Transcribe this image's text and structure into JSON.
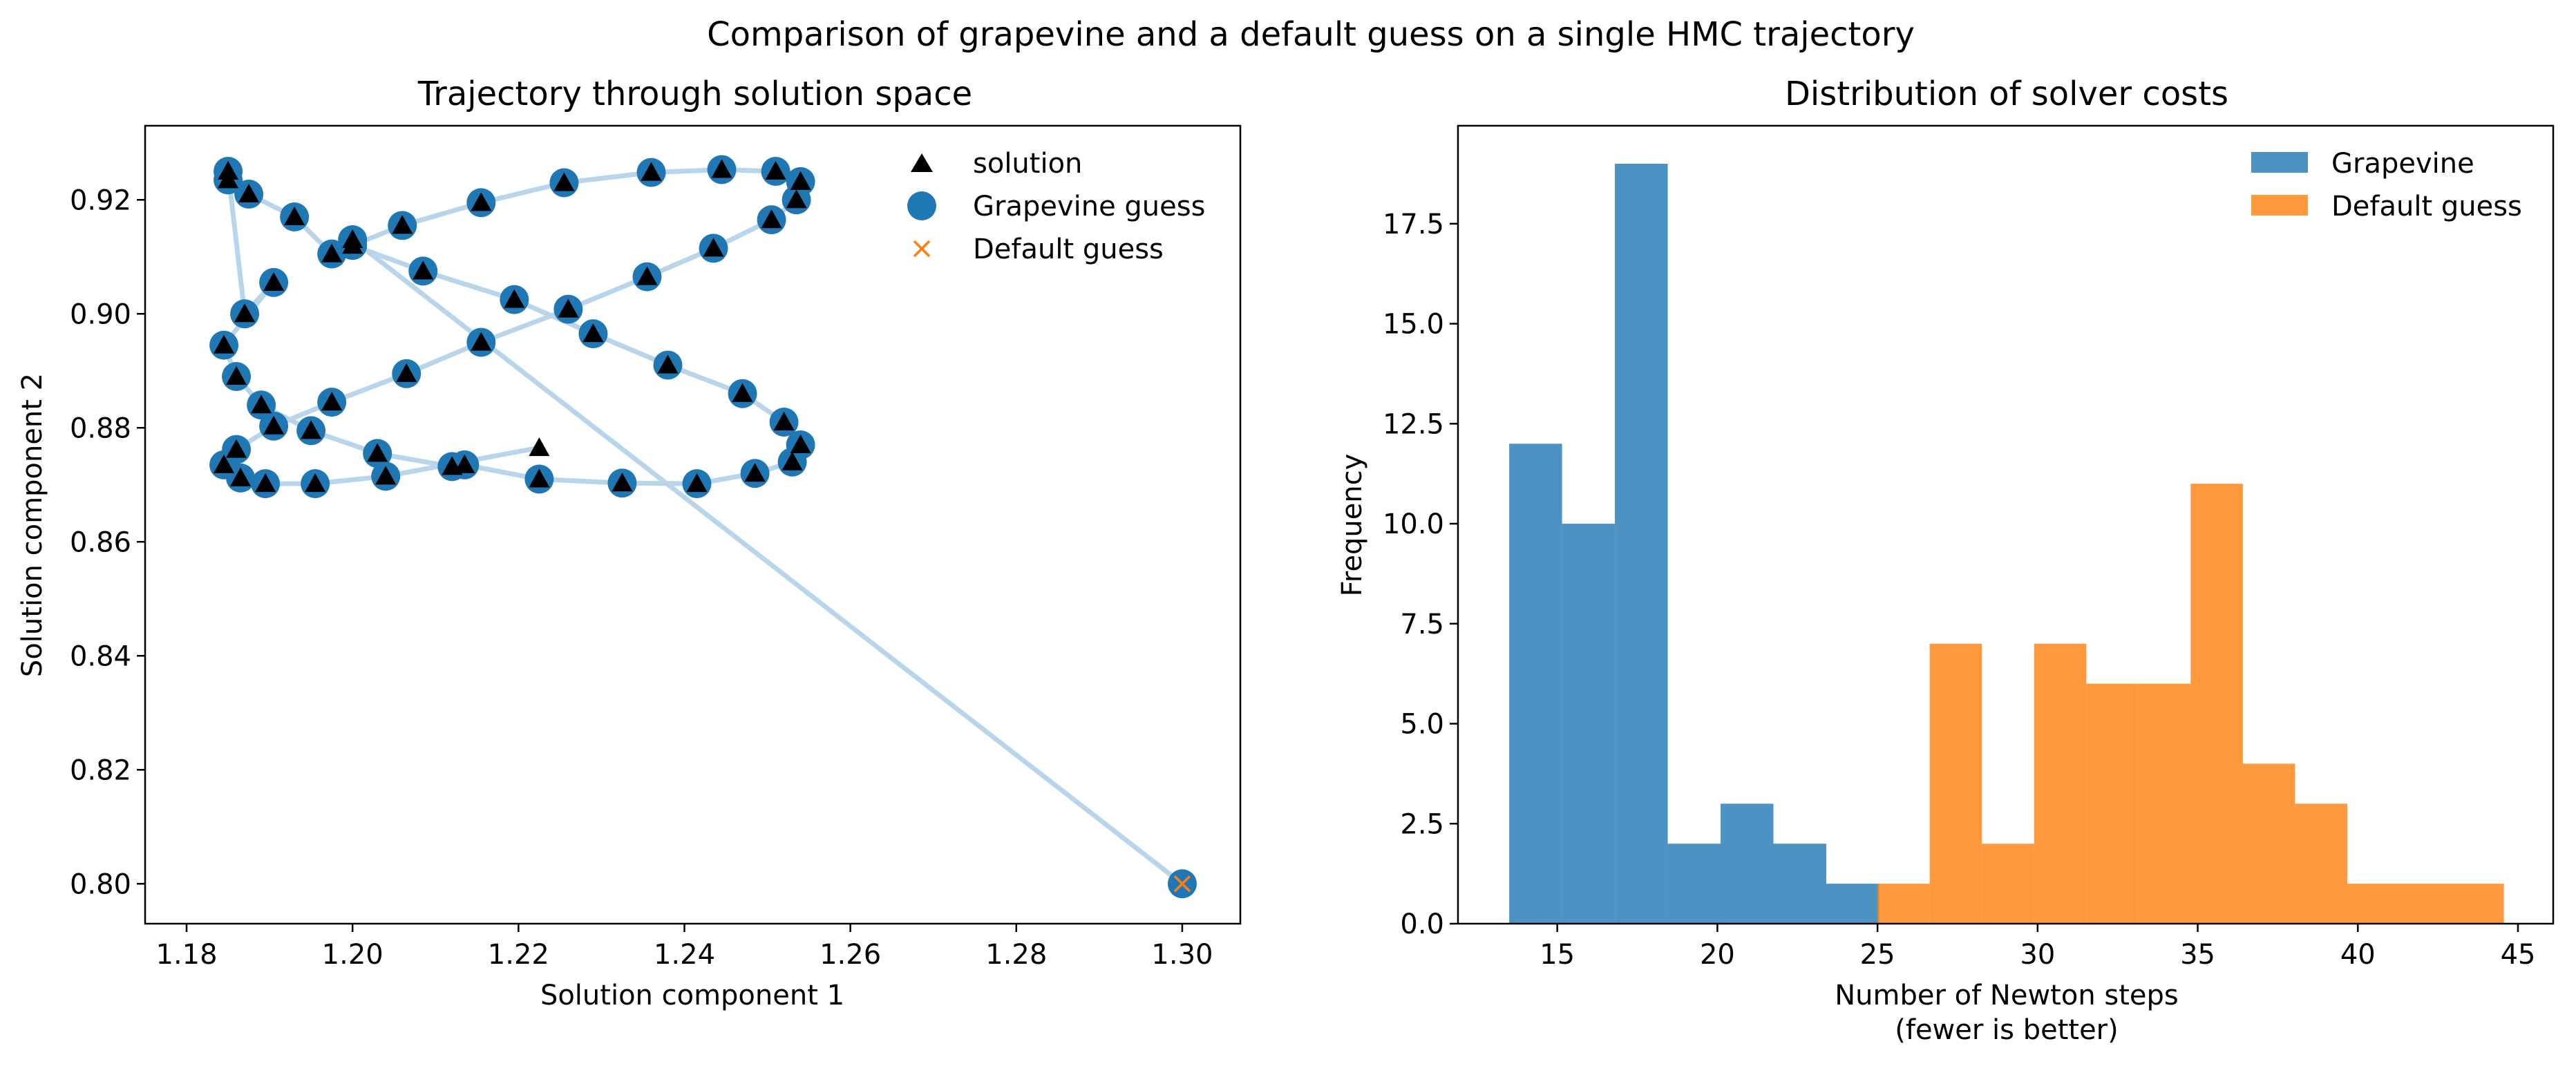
{
  "figure": {
    "suptitle": "Comparison of grapevine and a default guess on a single HMC trajectory"
  },
  "chart_data": [
    {
      "type": "scatter",
      "title": "Trajectory through solution space",
      "xlabel": "Solution component 1",
      "ylabel": "Solution component 2",
      "xlim": [
        1.175,
        1.307
      ],
      "ylim": [
        0.793,
        0.933
      ],
      "xticks": [
        "1.18",
        "1.20",
        "1.22",
        "1.24",
        "1.26",
        "1.28",
        "1.30"
      ],
      "yticks": [
        "0.80",
        "0.82",
        "0.84",
        "0.86",
        "0.88",
        "0.90",
        "0.92"
      ],
      "legend_position": "top-right",
      "grid": false,
      "colors": {
        "path": "#b9d5ea",
        "grapevine": "#1f77b4",
        "default": "#ff7f0e",
        "solution": "#000000"
      },
      "series": [
        {
          "name": "solution",
          "marker": "triangle"
        },
        {
          "name": "Grapevine guess",
          "marker": "circle"
        },
        {
          "name": "Default guess",
          "marker": "x"
        }
      ],
      "trajectory": [
        [
          1.3,
          0.8
        ],
        [
          1.2,
          0.913
        ],
        [
          1.1975,
          0.9105
        ],
        [
          1.193,
          0.917
        ],
        [
          1.1875,
          0.921
        ],
        [
          1.185,
          0.9235
        ],
        [
          1.185,
          0.925
        ],
        [
          1.187,
          0.9
        ],
        [
          1.1905,
          0.9055
        ],
        [
          1.1845,
          0.8945
        ],
        [
          1.186,
          0.889
        ],
        [
          1.189,
          0.884
        ],
        [
          1.195,
          0.8795
        ],
        [
          1.203,
          0.8755
        ],
        [
          1.212,
          0.8732
        ],
        [
          1.2135,
          0.8735
        ],
        [
          1.2225,
          0.871
        ],
        [
          1.2325,
          0.8703
        ],
        [
          1.2415,
          0.8702
        ],
        [
          1.2485,
          0.872
        ],
        [
          1.253,
          0.874
        ],
        [
          1.254,
          0.877
        ],
        [
          1.252,
          0.881
        ],
        [
          1.247,
          0.886
        ],
        [
          1.238,
          0.891
        ],
        [
          1.229,
          0.8965
        ],
        [
          1.2195,
          0.9025
        ],
        [
          1.2085,
          0.9075
        ],
        [
          1.2,
          0.912
        ],
        [
          1.206,
          0.9155
        ],
        [
          1.2155,
          0.9195
        ],
        [
          1.2255,
          0.923
        ],
        [
          1.236,
          0.9248
        ],
        [
          1.2445,
          0.9253
        ],
        [
          1.251,
          0.925
        ],
        [
          1.254,
          0.9232
        ],
        [
          1.2535,
          0.92
        ],
        [
          1.2505,
          0.9165
        ],
        [
          1.2435,
          0.9115
        ],
        [
          1.2355,
          0.9065
        ],
        [
          1.226,
          0.9008
        ],
        [
          1.2155,
          0.895
        ],
        [
          1.2065,
          0.8895
        ],
        [
          1.1975,
          0.8845
        ],
        [
          1.1905,
          0.8803
        ],
        [
          1.186,
          0.8762
        ],
        [
          1.1845,
          0.8735
        ],
        [
          1.1865,
          0.8712
        ],
        [
          1.1895,
          0.8702
        ],
        [
          1.1955,
          0.8702
        ],
        [
          1.204,
          0.8715
        ],
        [
          1.2225,
          0.8765
        ]
      ],
      "default_guess": [
        1.3,
        0.8
      ]
    },
    {
      "type": "bar",
      "title": "Distribution of solver costs",
      "xlabel": "Number of Newton steps",
      "xlabel_note": "(fewer is better)",
      "ylabel": "Frequency",
      "xlim": [
        11.9,
        46.1
      ],
      "ylim": [
        0,
        19.95
      ],
      "xticks": [
        "15",
        "20",
        "25",
        "30",
        "35",
        "40",
        "45"
      ],
      "yticks": [
        "0.0",
        "2.5",
        "5.0",
        "7.5",
        "10.0",
        "12.5",
        "15.0",
        "17.5"
      ],
      "legend_position": "top-right",
      "grid": false,
      "series": [
        {
          "name": "Grapevine",
          "color": "#1f77b4",
          "bin_edges": [
            13.5,
            15.15,
            16.8,
            18.45,
            20.1,
            21.75,
            23.4,
            25.05
          ],
          "values": [
            12,
            10,
            19,
            2,
            3,
            2,
            1
          ]
        },
        {
          "name": "Default guess",
          "color": "#ff7f0e",
          "bin_edges": [
            25.0,
            26.63,
            28.26,
            29.89,
            31.52,
            33.15,
            34.78,
            36.41,
            38.04,
            39.67,
            41.3,
            42.93,
            44.56
          ],
          "values": [
            1,
            7,
            2,
            7,
            6,
            6,
            11,
            4,
            3,
            1,
            1,
            1
          ]
        }
      ]
    }
  ]
}
